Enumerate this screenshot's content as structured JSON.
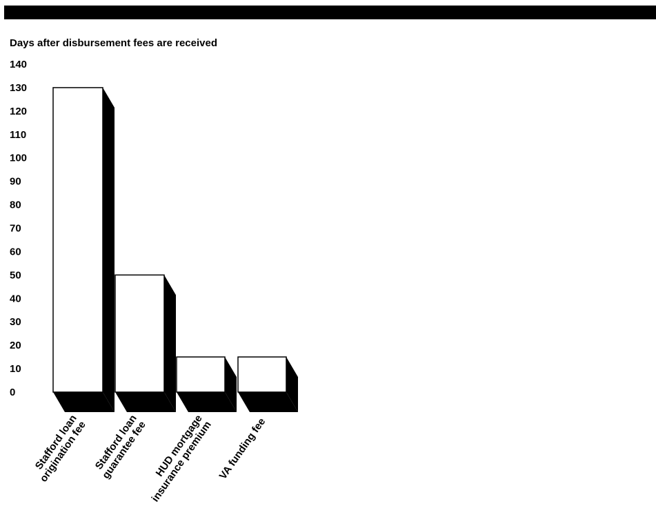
{
  "header": {
    "bar_color": "#000000"
  },
  "chart_data": {
    "type": "bar",
    "title": "Days after disbursement fees are received",
    "xlabel": "",
    "ylabel": "",
    "ylim": [
      0,
      140
    ],
    "yticks": [
      0,
      10,
      20,
      30,
      40,
      50,
      60,
      70,
      80,
      90,
      100,
      110,
      120,
      130,
      140
    ],
    "categories": [
      [
        "Stafford loan",
        "origination fee"
      ],
      [
        "Stafford loan",
        "guarantee fee"
      ],
      [
        "HUD mortgage",
        "insurance premium"
      ],
      [
        "VA funding fee"
      ]
    ],
    "values": [
      130,
      50,
      15,
      15
    ],
    "grid": false,
    "legend": "none",
    "bar_fill": "#ffffff",
    "bar_shadow": "#000000"
  }
}
